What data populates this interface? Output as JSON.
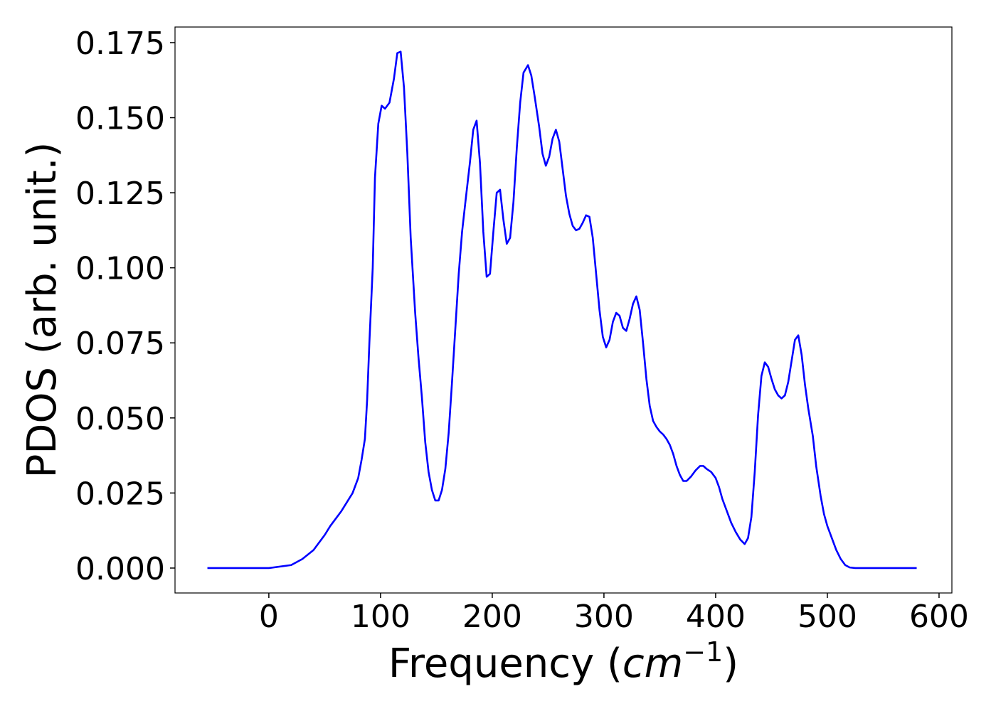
{
  "chart_data": {
    "type": "line",
    "xlabel": [
      "Frequency (",
      "cm",
      "−1",
      ")"
    ],
    "ylabel": "PDOS (arb. unit.)",
    "color": "#0000ff",
    "x": [
      -55,
      0,
      20,
      30,
      40,
      50,
      55,
      65,
      75,
      80,
      83,
      86,
      88,
      90,
      93,
      95,
      98,
      101,
      104,
      108,
      112,
      115,
      118,
      121,
      124,
      127,
      131,
      134,
      137,
      140,
      143,
      146,
      149,
      152,
      155,
      158,
      161,
      164,
      167,
      170,
      173,
      176,
      180,
      183,
      186,
      189,
      192,
      195,
      198,
      201,
      204,
      207,
      210,
      213,
      216,
      219,
      222,
      225,
      228,
      232,
      235,
      238,
      242,
      245,
      248,
      251,
      254,
      257,
      260,
      263,
      266,
      269,
      272,
      275,
      278,
      281,
      284,
      287,
      290,
      293,
      296,
      299,
      302,
      305,
      308,
      311,
      314,
      317,
      320,
      323,
      326,
      329,
      332,
      335,
      338,
      341,
      344,
      347,
      350,
      353,
      356,
      359,
      362,
      365,
      368,
      371,
      374,
      378,
      382,
      386,
      389,
      392,
      396,
      400,
      403,
      406,
      410,
      414,
      418,
      422,
      426,
      429,
      432,
      435,
      438,
      441,
      444,
      447,
      450,
      453,
      456,
      459,
      462,
      465,
      468,
      471,
      474,
      477,
      480,
      483,
      487,
      490,
      494,
      497,
      500,
      504,
      508,
      512,
      516,
      520,
      525,
      580
    ],
    "values": [
      0,
      0,
      0.001,
      0.003,
      0.006,
      0.011,
      0.014,
      0.019,
      0.025,
      0.03,
      0.036,
      0.043,
      0.056,
      0.075,
      0.1,
      0.13,
      0.148,
      0.154,
      0.153,
      0.155,
      0.163,
      0.1715,
      0.172,
      0.16,
      0.138,
      0.11,
      0.085,
      0.07,
      0.057,
      0.042,
      0.032,
      0.026,
      0.0225,
      0.0225,
      0.026,
      0.033,
      0.045,
      0.062,
      0.08,
      0.098,
      0.112,
      0.122,
      0.135,
      0.146,
      0.149,
      0.135,
      0.112,
      0.097,
      0.098,
      0.112,
      0.125,
      0.126,
      0.116,
      0.108,
      0.11,
      0.122,
      0.14,
      0.155,
      0.165,
      0.1675,
      0.164,
      0.157,
      0.147,
      0.138,
      0.134,
      0.137,
      0.143,
      0.146,
      0.142,
      0.133,
      0.124,
      0.118,
      0.114,
      0.1125,
      0.113,
      0.115,
      0.1175,
      0.117,
      0.11,
      0.098,
      0.086,
      0.077,
      0.0735,
      0.076,
      0.082,
      0.085,
      0.084,
      0.08,
      0.079,
      0.083,
      0.088,
      0.0905,
      0.086,
      0.075,
      0.063,
      0.054,
      0.049,
      0.047,
      0.0455,
      0.0445,
      0.043,
      0.041,
      0.038,
      0.034,
      0.031,
      0.029,
      0.029,
      0.0305,
      0.0325,
      0.034,
      0.034,
      0.033,
      0.032,
      0.03,
      0.027,
      0.023,
      0.019,
      0.015,
      0.012,
      0.0095,
      0.008,
      0.01,
      0.017,
      0.032,
      0.051,
      0.064,
      0.0685,
      0.067,
      0.063,
      0.0595,
      0.0575,
      0.0565,
      0.0575,
      0.062,
      0.069,
      0.076,
      0.0775,
      0.071,
      0.061,
      0.053,
      0.044,
      0.034,
      0.024,
      0.018,
      0.014,
      0.01,
      0.006,
      0.003,
      0.001,
      0.0002,
      0,
      0
    ],
    "xlim": [
      -84,
      611.5
    ],
    "ylim": [
      -0.0083,
      0.1802
    ],
    "xticks": [
      0,
      100,
      200,
      300,
      400,
      500,
      600
    ],
    "yticks": [
      {
        "value": 0,
        "label": "0.000"
      },
      {
        "value": 0.025,
        "label": "0.025"
      },
      {
        "value": 0.05,
        "label": "0.050"
      },
      {
        "value": 0.075,
        "label": "0.075"
      },
      {
        "value": 0.1,
        "label": "0.100"
      },
      {
        "value": 0.125,
        "label": "0.125"
      },
      {
        "value": 0.15,
        "label": "0.150"
      },
      {
        "value": 0.175,
        "label": "0.175"
      }
    ],
    "grid": false
  }
}
